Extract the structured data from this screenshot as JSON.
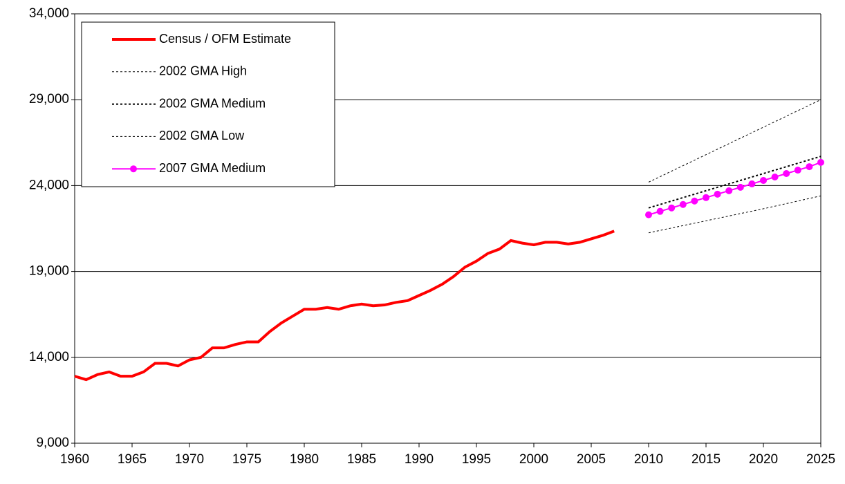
{
  "chart_data": {
    "type": "line",
    "xlim": [
      1960,
      2025
    ],
    "xticks": [
      1960,
      1965,
      1970,
      1975,
      1980,
      1985,
      1990,
      1995,
      2000,
      2005,
      2010,
      2015,
      2020,
      2025
    ],
    "ylim": [
      9000,
      34000
    ],
    "yticks": [
      {
        "value": 9000,
        "label": "9,000"
      },
      {
        "value": 14000,
        "label": "14,000"
      },
      {
        "value": 19000,
        "label": "19,000"
      },
      {
        "value": 24000,
        "label": "24,000"
      },
      {
        "value": 29000,
        "label": "29,000"
      },
      {
        "value": 34000,
        "label": "34,000"
      }
    ],
    "grid": true,
    "legend": "upper left",
    "series": [
      {
        "name": "Census / OFM Estimate",
        "color": "#ff0000",
        "width": 4,
        "dash": false,
        "marker": false,
        "x": [
          1960,
          1961,
          1962,
          1963,
          1964,
          1965,
          1966,
          1967,
          1968,
          1969,
          1970,
          1971,
          1972,
          1973,
          1974,
          1975,
          1976,
          1977,
          1978,
          1979,
          1980,
          1981,
          1982,
          1983,
          1984,
          1985,
          1986,
          1987,
          1988,
          1989,
          1990,
          1991,
          1992,
          1993,
          1994,
          1995,
          1996,
          1997,
          1998,
          1999,
          2000,
          2001,
          2002,
          2003,
          2004,
          2005,
          2006,
          2007
        ],
        "values": [
          12900,
          12700,
          13000,
          13150,
          12900,
          12900,
          13150,
          13650,
          13650,
          13500,
          13850,
          14000,
          14550,
          14550,
          14750,
          14900,
          14900,
          15500,
          16000,
          16400,
          16800,
          16800,
          16900,
          16800,
          17000,
          17100,
          17000,
          17050,
          17200,
          17300,
          17600,
          17900,
          18250,
          18700,
          19250,
          19600,
          20050,
          20300,
          20800,
          20650,
          20550,
          20700,
          20700,
          20600,
          20700,
          20900,
          21100,
          21350
        ]
      },
      {
        "name": "2002 GMA High",
        "color": "#000000",
        "width": 1,
        "dash": true,
        "marker": false,
        "x": [
          2010,
          2015,
          2020,
          2025
        ],
        "values": [
          24200,
          25800,
          27400,
          29000
        ]
      },
      {
        "name": "2002 GMA Medium",
        "color": "#000000",
        "width": 2,
        "dash": true,
        "marker": false,
        "x": [
          2010,
          2015,
          2020,
          2025
        ],
        "values": [
          22700,
          23700,
          24700,
          25700
        ]
      },
      {
        "name": "2002 GMA Low",
        "color": "#000000",
        "width": 1,
        "dash": true,
        "marker": false,
        "x": [
          2010,
          2015,
          2020,
          2025
        ],
        "values": [
          21250,
          21950,
          22650,
          23400
        ]
      },
      {
        "name": "2007 GMA Medium",
        "color": "#ff00ff",
        "width": 2,
        "dash": false,
        "marker": true,
        "x": [
          2010,
          2011,
          2012,
          2013,
          2014,
          2015,
          2016,
          2017,
          2018,
          2019,
          2020,
          2021,
          2022,
          2023,
          2024,
          2025
        ],
        "values": [
          22300,
          22500,
          22700,
          22900,
          23100,
          23300,
          23500,
          23700,
          23900,
          24100,
          24300,
          24500,
          24700,
          24900,
          25100,
          25350
        ]
      }
    ]
  }
}
